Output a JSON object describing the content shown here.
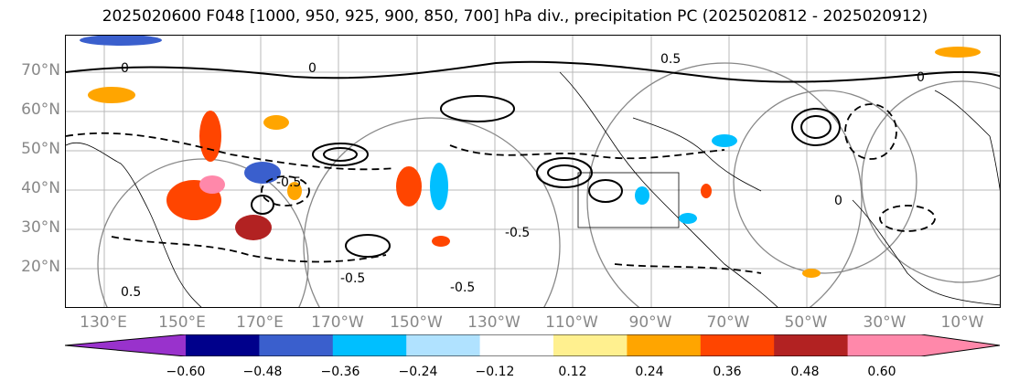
{
  "title": "2025020600 F048 [1000, 950, 925, 900, 850, 700] hPa div., precipitation PC (2025020812 - 2025020912)",
  "lat_labels": [
    "70°N",
    "60°N",
    "50°N",
    "40°N",
    "30°N",
    "20°N"
  ],
  "lon_labels": [
    "130°E",
    "150°E",
    "170°E",
    "170°W",
    "150°W",
    "130°W",
    "110°W",
    "90°W",
    "70°W",
    "50°W",
    "30°W",
    "10°W"
  ],
  "colorbar": {
    "ticks": [
      "−0.60",
      "−0.48",
      "−0.36",
      "−0.24",
      "−0.12",
      "0.12",
      "0.24",
      "0.36",
      "0.48",
      "0.60"
    ],
    "colors": [
      "#9932cc",
      "#00008b",
      "#3a5fcd",
      "#00bfff",
      "#b0e2ff",
      "#ffffff",
      "#fff08f",
      "#ffa500",
      "#ff4500",
      "#b22222",
      "#ff88aa",
      "#ff88aa"
    ]
  },
  "contour_labels": [
    "0",
    "0.5",
    "-0.5",
    "-0.5",
    "0",
    "0.5",
    "-0.5",
    "0",
    "-0.5",
    "0"
  ]
}
